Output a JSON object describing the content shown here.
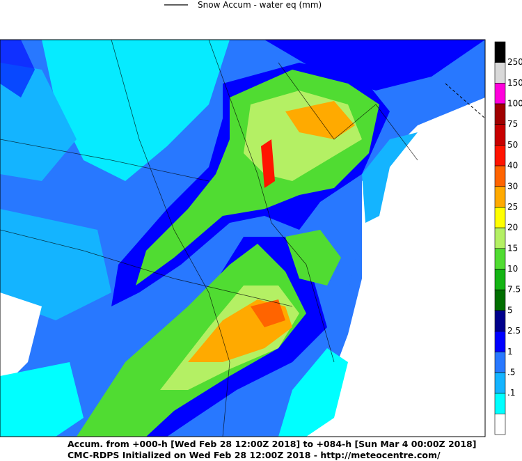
{
  "header": {
    "legend": "Snow Accum - water eq (mm)"
  },
  "colorbar": {
    "colors": [
      "#000000",
      "#d9d9d9",
      "#ff00dc",
      "#a00000",
      "#c80000",
      "#ff1400",
      "#ff6400",
      "#ffaa00",
      "#ffff00",
      "#b4f064",
      "#50dc32",
      "#14b414",
      "#006e00",
      "#00008c",
      "#0000ff",
      "#2878ff",
      "#14b4ff",
      "#00ffff",
      "#ffffff"
    ],
    "labels": [
      "250",
      "150",
      "100",
      "75",
      "50",
      "40",
      "30",
      "25",
      "20",
      "15",
      "10",
      "7.5",
      "5",
      "2.5",
      "1",
      ".5",
      ".1"
    ]
  },
  "footer": {
    "line1": "Accum. from +000-h [Wed Feb 28 12:00Z 2018] to +084-h [Sun Mar 4 00:00Z 2018]",
    "line2": "CMC-RDPS Initialized on Wed Feb 28 12:00Z 2018 - http://meteocentre.com/"
  }
}
